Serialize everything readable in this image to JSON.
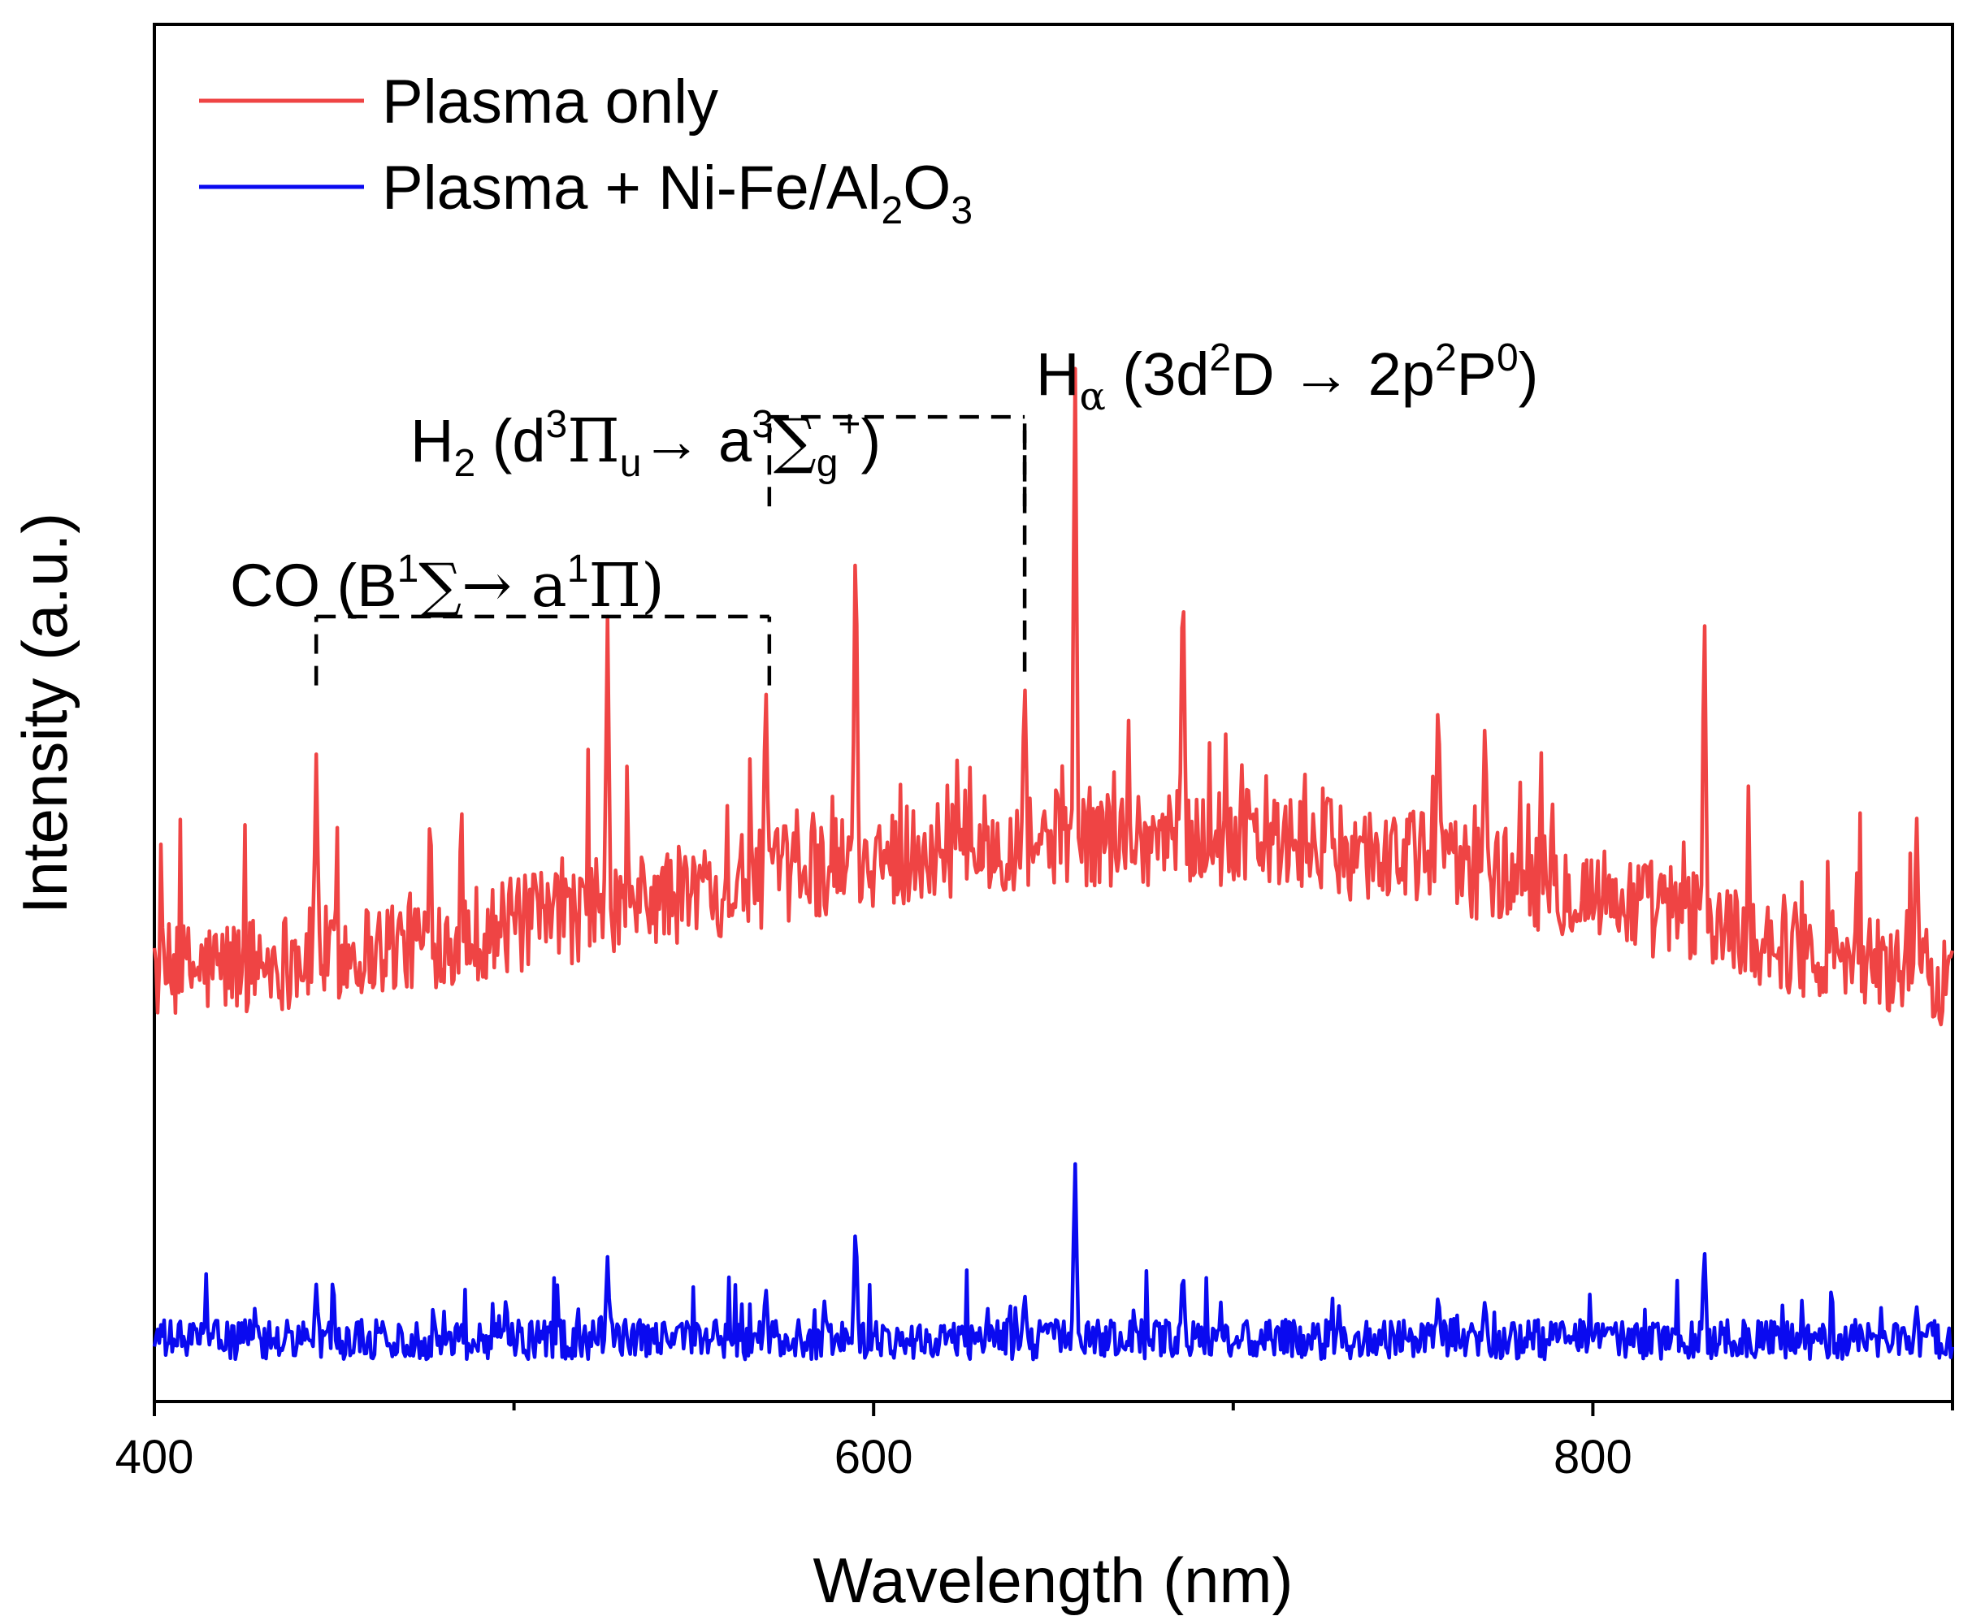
{
  "chart_data": {
    "type": "line",
    "title": "",
    "xlabel": "Wavelength (nm)",
    "ylabel": "Intensity (a.u.)",
    "xlim": [
      400,
      900
    ],
    "ylim": [
      0,
      1
    ],
    "x_ticks": [
      400,
      600,
      800
    ],
    "x_minor_ticks": [
      500,
      700,
      900
    ],
    "y_ticks": [],
    "grid": false,
    "legend_position": "top-left",
    "series": [
      {
        "name": "Plasma only",
        "color": "#ef4444",
        "baseline": {
          "x": [
            400,
            450,
            500,
            550,
            600,
            650,
            700,
            750,
            800,
            850,
            900
          ],
          "y": [
            0.31,
            0.325,
            0.345,
            0.37,
            0.395,
            0.41,
            0.41,
            0.395,
            0.37,
            0.335,
            0.305
          ]
        },
        "noise_amplitude": 0.045,
        "peaks": [
          {
            "x": 445,
            "y": 0.47
          },
          {
            "x": 526,
            "y": 0.57
          },
          {
            "x": 570,
            "y": 0.53
          },
          {
            "x": 595,
            "y": 0.65
          },
          {
            "x": 642,
            "y": 0.53
          },
          {
            "x": 656,
            "y": 0.77
          },
          {
            "x": 686,
            "y": 0.62
          },
          {
            "x": 757,
            "y": 0.52
          },
          {
            "x": 770,
            "y": 0.5
          },
          {
            "x": 831,
            "y": 0.59
          },
          {
            "x": 890,
            "y": 0.43
          }
        ]
      },
      {
        "name": "Plasma + Ni-Fe/Al2O3",
        "name_parts": {
          "main": "Plasma + Ni-Fe/Al",
          "sub1": "2",
          "mid": "O",
          "sub2": "3"
        },
        "color": "#0a0af0",
        "baseline": {
          "x": [
            400,
            900
          ],
          "y": [
            0.045,
            0.045
          ]
        },
        "noise_amplitude": 0.018,
        "peaks": [
          {
            "x": 445,
            "y": 0.085
          },
          {
            "x": 526,
            "y": 0.105
          },
          {
            "x": 570,
            "y": 0.085
          },
          {
            "x": 595,
            "y": 0.135
          },
          {
            "x": 642,
            "y": 0.08
          },
          {
            "x": 656,
            "y": 0.18
          },
          {
            "x": 686,
            "y": 0.1
          },
          {
            "x": 757,
            "y": 0.08
          },
          {
            "x": 770,
            "y": 0.075
          },
          {
            "x": 831,
            "y": 0.115
          },
          {
            "x": 890,
            "y": 0.07
          }
        ]
      }
    ],
    "annotations": [
      {
        "id": "co",
        "parts": [
          "CO (B",
          "1",
          "∑→ a",
          "1",
          "Π)"
        ],
        "bracket_x": [
          445,
          571
        ],
        "bracket_level": 0.52,
        "bracket_top": 0.57
      },
      {
        "id": "h2",
        "parts": [
          "H",
          "2",
          " (d",
          "3",
          "Π",
          "u",
          "→ a",
          "3",
          "∑",
          "g",
          "+",
          ")"
        ],
        "bracket_x": [
          571,
          642
        ],
        "bracket_level": 0.65,
        "bracket_top": 0.715
      },
      {
        "id": "halpha",
        "parts": [
          "H",
          "α",
          " (3d",
          "2",
          "D → 2p",
          "2",
          "P",
          "0",
          ")"
        ],
        "bracket_x": [
          642
        ],
        "bracket_top": 0.71
      }
    ]
  }
}
